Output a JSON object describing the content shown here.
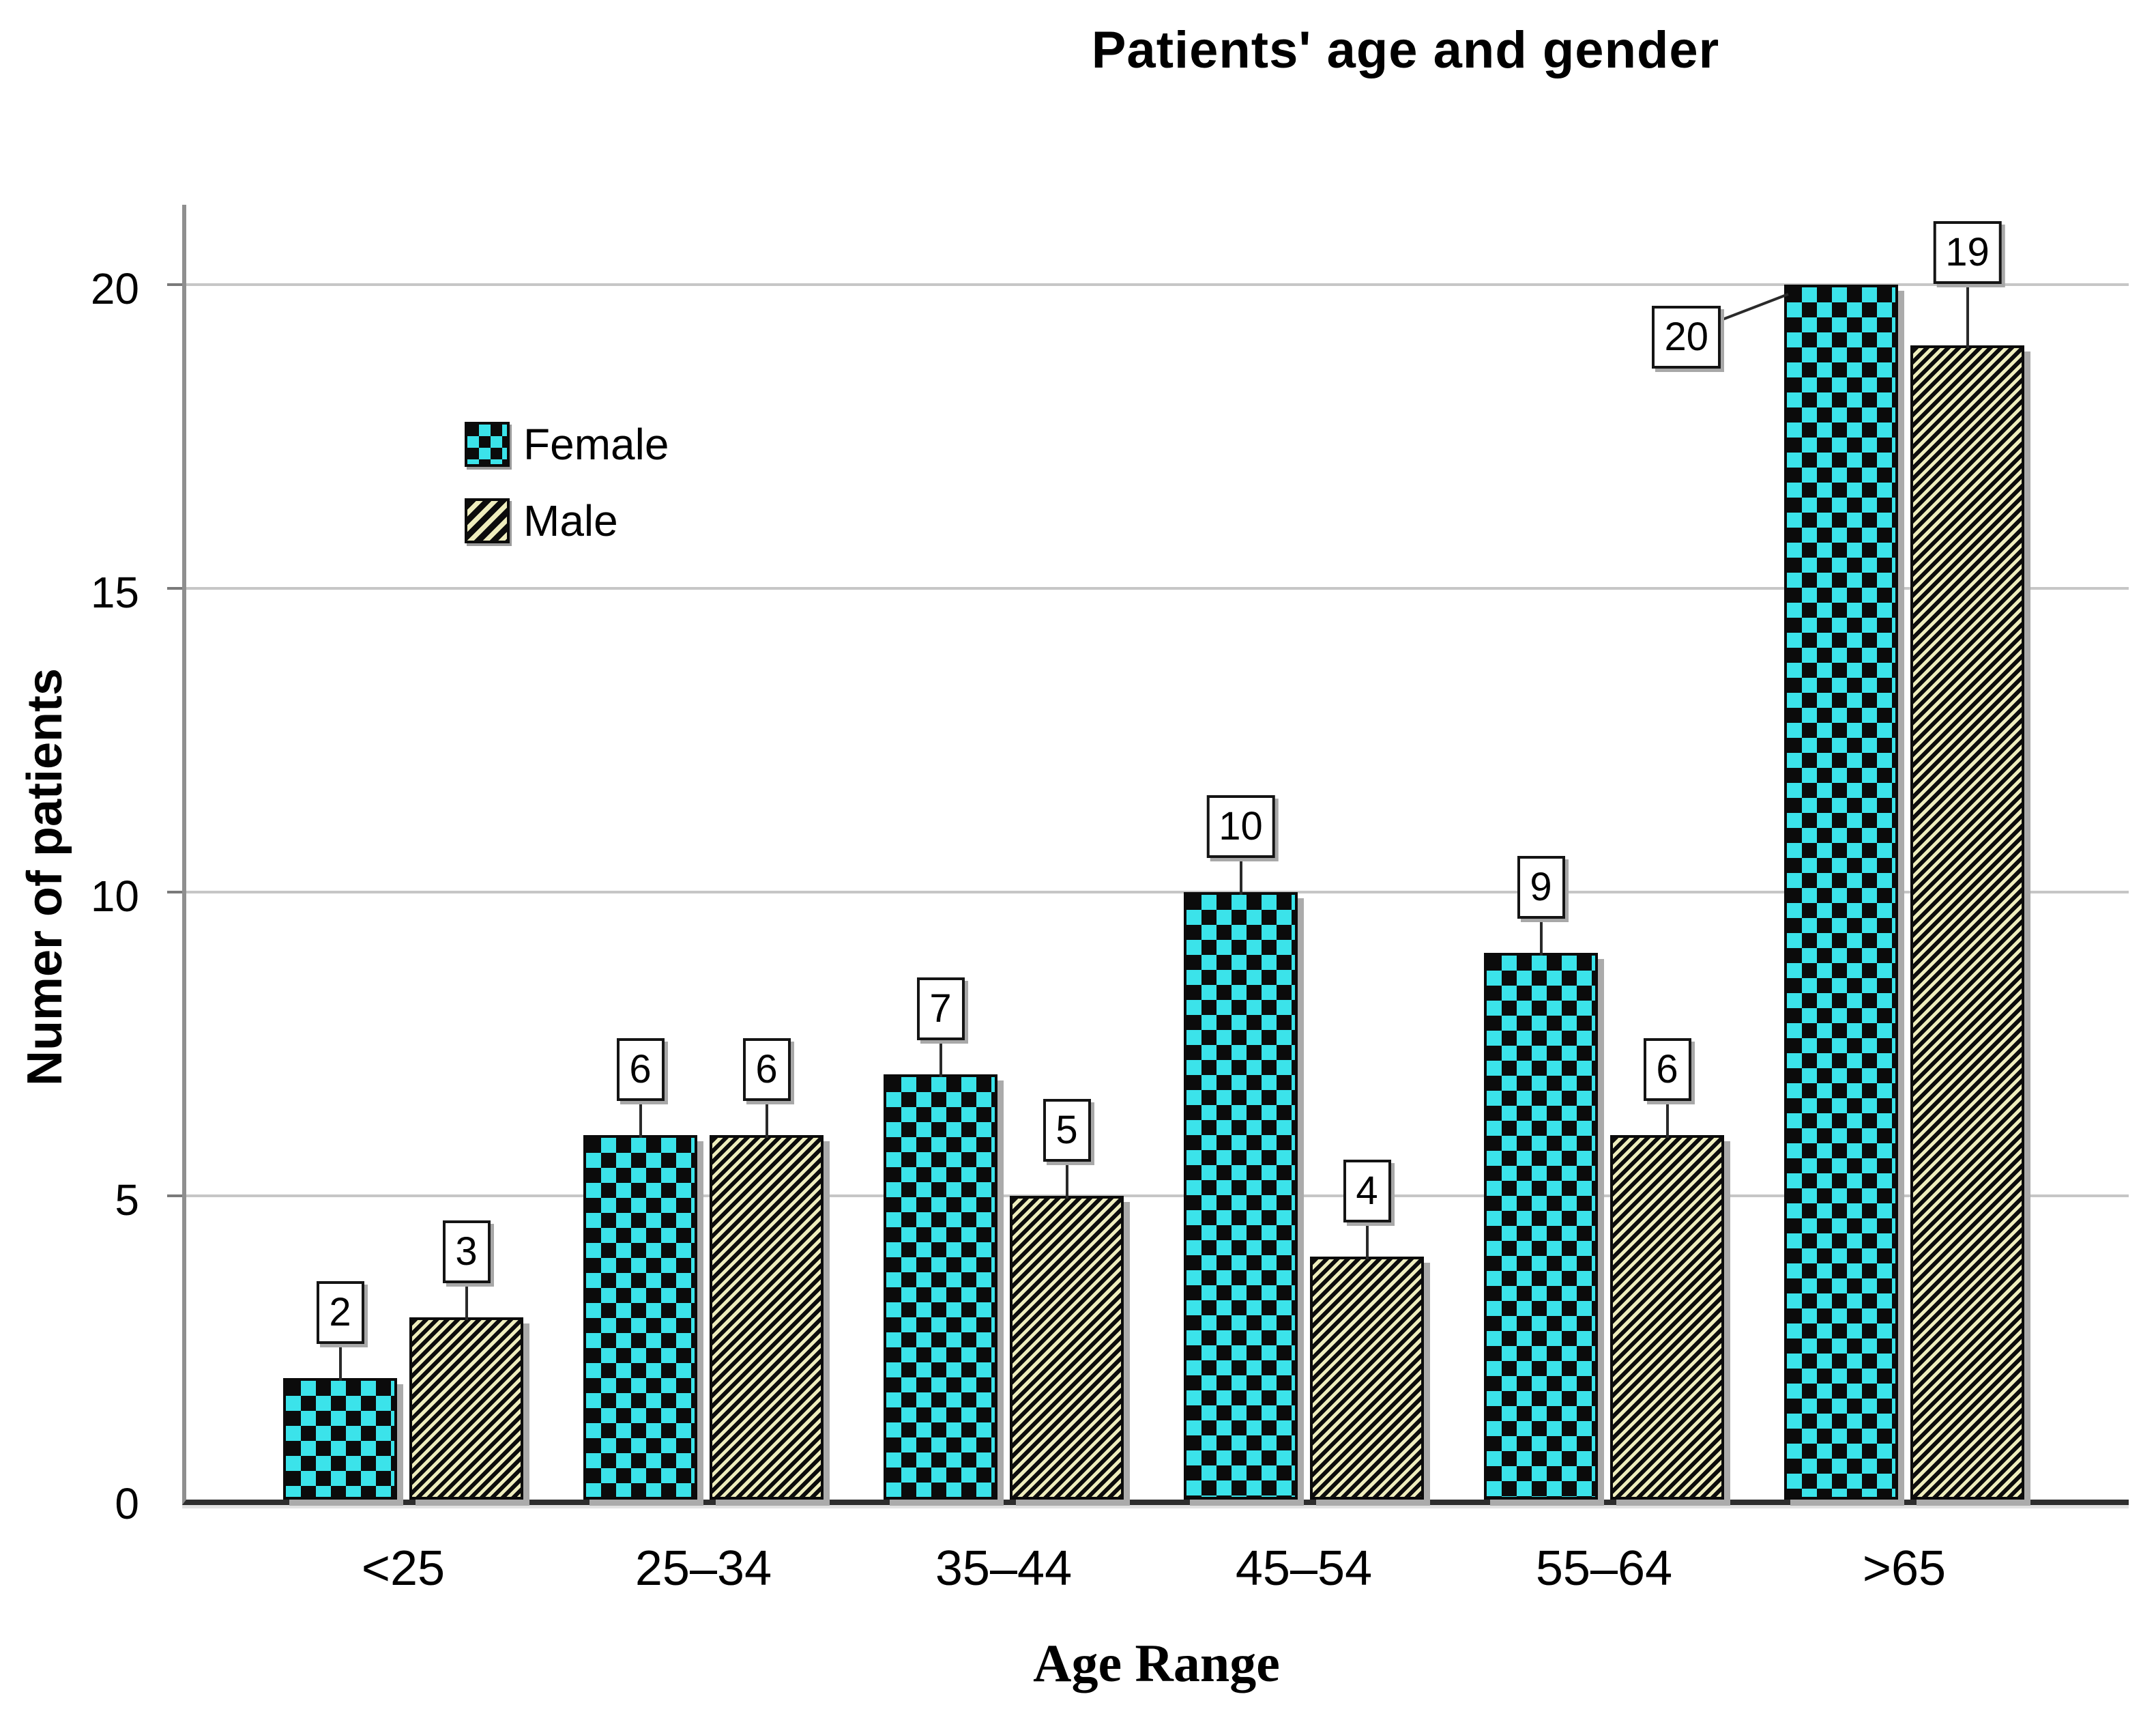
{
  "title": "Patients' age and gender",
  "chart_data": {
    "type": "bar",
    "title": "Patients' age and gender",
    "xlabel": "Age Range",
    "ylabel": "Numer of patients",
    "categories": [
      "<25",
      "25–34",
      "35–44",
      "45–54",
      "55–64",
      ">65"
    ],
    "series": [
      {
        "name": "Female",
        "pattern": "cyan-black-checkerboard",
        "values": [
          2,
          6,
          7,
          10,
          9,
          20
        ]
      },
      {
        "name": "Male",
        "pattern": "black-yellow-diagonal-stripes",
        "values": [
          3,
          6,
          5,
          4,
          6,
          19
        ]
      }
    ],
    "bar_labels": {
      "Female": [
        2,
        6,
        7,
        10,
        9,
        20
      ],
      "Male": [
        3,
        6,
        5,
        4,
        6,
        19
      ]
    },
    "yticks": [
      0,
      5,
      10,
      15,
      20
    ],
    "ylim": [
      0,
      21.4
    ],
    "grid": "horizontal-gridlines-at-yticks",
    "legend_position": "top-left-inside",
    "legend_entries": [
      "Female",
      "Male"
    ]
  },
  "colors": {
    "background": "#ffffff",
    "female_fill": "#3be3ea",
    "pattern_black": "#0b0b0b",
    "male_stripe": "#eeedbd",
    "gridline": "#c6c6c6",
    "y_axis_line": "#8f8f8f",
    "x_axis_line": "#2e2e2e",
    "shadow": "#ababab",
    "label_box_bg": "#ffffff",
    "text": "#000000"
  }
}
